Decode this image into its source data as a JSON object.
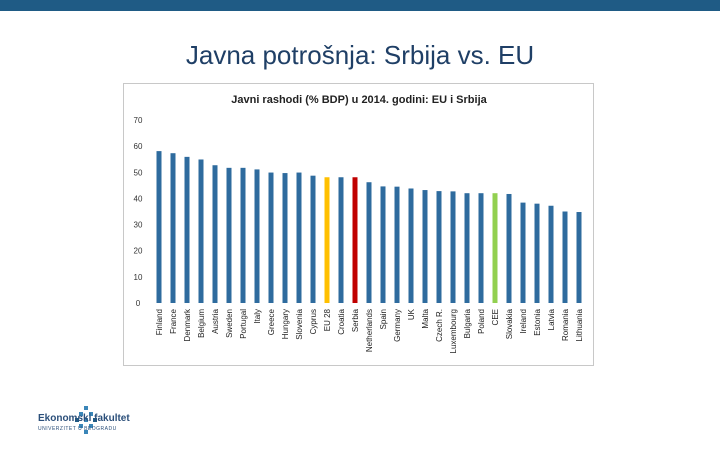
{
  "slide": {
    "title": "Javna potrošnja: Srbija vs. EU"
  },
  "logo": {
    "name": "Ekonomski fakultet",
    "subtitle": "UNIVERZITET U BEOGRADU"
  },
  "colors": {
    "bar_default": "#2e6b9e",
    "bar_eu28": "#ffc000",
    "bar_serbia": "#c00000",
    "bar_cee": "#92d050",
    "header_bar": "#1f5b85",
    "title": "#1f3f66"
  },
  "chart_data": {
    "type": "bar",
    "title": "Javni rashodi (% BDP) u 2014. godini: EU i Srbija",
    "xlabel": "",
    "ylabel": "",
    "ylim": [
      0,
      70
    ],
    "yticks": [
      0,
      10,
      20,
      30,
      40,
      50,
      60,
      70
    ],
    "grid": false,
    "categories": [
      "Finland",
      "France",
      "Denmark",
      "Belgium",
      "Austria",
      "Sweden",
      "Portugal",
      "Italy",
      "Greece",
      "Hungary",
      "Slovenia",
      "Cyprus",
      "EU 28",
      "Croatia",
      "Serbia",
      "Netherlands",
      "Spain",
      "Germany",
      "UK",
      "Malta",
      "Czech R.",
      "Luxembourg",
      "Bulgaria",
      "Poland",
      "CEE",
      "Slovakia",
      "Ireland",
      "Estonia",
      "Latvia",
      "Romania",
      "Lithuania"
    ],
    "values": [
      58.1,
      57.3,
      55.9,
      54.9,
      52.7,
      51.7,
      51.7,
      51.1,
      49.9,
      49.7,
      49.9,
      48.7,
      48.1,
      48.1,
      48.1,
      46.2,
      44.6,
      44.5,
      43.8,
      43.2,
      42.8,
      42.7,
      42.0,
      42.0,
      42.0,
      41.7,
      38.4,
      38.0,
      37.2,
      35.0,
      34.8
    ],
    "highlights": {
      "EU 28": "#ffc000",
      "Serbia": "#c00000",
      "CEE": "#92d050"
    }
  }
}
